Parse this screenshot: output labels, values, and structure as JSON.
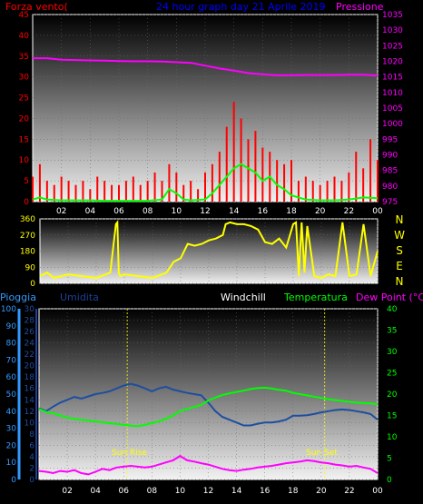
{
  "chart_data": [
    {
      "type": "line",
      "panel": "wind-pressure",
      "title": "24 hour graph day  21 Aprile 2019",
      "left_label": "Forza vento(",
      "right_label": "Pressione",
      "colors": {
        "left": "#ff0000",
        "right": "#ff00ff",
        "title": "#0000ff",
        "gust": "#ff0000",
        "avg": "#00ff00",
        "pressure": "#ff00ff"
      },
      "y_left_range": [
        0,
        45
      ],
      "y_left_ticks": [
        "0",
        "5",
        "10",
        "15",
        "20",
        "25",
        "30",
        "35",
        "40",
        "45"
      ],
      "y_right_range": [
        975,
        1035
      ],
      "y_right_ticks": [
        "975",
        "980",
        "985",
        "990",
        "995",
        "1000",
        "1005",
        "1010",
        "1015",
        "1020",
        "1025",
        "1030",
        "1035"
      ],
      "x_ticks": [
        "02",
        "04",
        "06",
        "08",
        "10",
        "12",
        "14",
        "16",
        "18",
        "20",
        "22",
        "00"
      ],
      "series": [
        {
          "key": "pressure",
          "values_x": [
            0,
            1,
            2,
            3,
            4,
            5,
            6,
            7,
            8,
            9,
            10,
            11,
            12,
            13,
            14,
            15,
            16,
            17,
            18,
            19,
            20,
            21,
            22,
            23,
            24
          ],
          "values": [
            1021,
            1021,
            1020.5,
            1020.4,
            1020.3,
            1020.2,
            1020.1,
            1020,
            1020,
            1019.9,
            1019.7,
            1019.5,
            1018.6,
            1017.7,
            1017,
            1016.2,
            1015.8,
            1015.5,
            1015.5,
            1015.6,
            1015.6,
            1015.6,
            1015.7,
            1015.7,
            1015.4
          ]
        },
        {
          "key": "wind-avg",
          "values_x": [
            0,
            0.5,
            1,
            2,
            3,
            4,
            5,
            6,
            7,
            8,
            9,
            9.5,
            10,
            10.5,
            11,
            12,
            12.5,
            13,
            13.5,
            14,
            14.5,
            15,
            15.5,
            16,
            16.5,
            17,
            17.5,
            18,
            19,
            20,
            21,
            22,
            23,
            24
          ],
          "values": [
            0.5,
            1,
            0.5,
            0.3,
            0.3,
            0.3,
            0.2,
            0.2,
            0.2,
            0.2,
            0.5,
            3,
            2,
            0.5,
            0.3,
            0.5,
            2,
            4,
            6,
            8,
            9,
            8,
            7,
            5,
            6,
            4,
            3,
            1.5,
            0.5,
            0.3,
            0.3,
            0.5,
            1,
            0.8
          ]
        },
        {
          "key": "wind-gust",
          "values_x": [
            0,
            0.5,
            1,
            1.5,
            2,
            2.5,
            3,
            3.5,
            4,
            4.5,
            5,
            5.5,
            6,
            6.5,
            7,
            7.5,
            8,
            8.5,
            9,
            9.5,
            10,
            10.5,
            11,
            11.5,
            12,
            12.5,
            13,
            13.5,
            14,
            14.5,
            15,
            15.5,
            16,
            16.5,
            17,
            17.5,
            18,
            18.5,
            19,
            19.5,
            20,
            20.5,
            21,
            21.5,
            22,
            22.5,
            23,
            23.5,
            24
          ],
          "values": [
            6,
            9,
            5,
            4,
            6,
            5,
            4,
            5,
            3,
            6,
            5,
            4,
            4,
            5,
            6,
            4,
            5,
            7,
            5,
            9,
            7,
            4,
            5,
            3,
            7,
            9,
            12,
            18,
            24,
            20,
            15,
            17,
            13,
            12,
            10,
            9,
            10,
            5,
            6,
            5,
            4,
            5,
            6,
            5,
            7,
            12,
            8,
            15,
            10
          ]
        }
      ]
    },
    {
      "type": "line",
      "panel": "wind-direction",
      "y_range": [
        0,
        360
      ],
      "y_ticks": [
        "0",
        "90",
        "180",
        "270",
        "360"
      ],
      "direction_letters": [
        "N",
        "W",
        "S",
        "E",
        "N"
      ],
      "colors": {
        "line": "#ffff00",
        "ticks": "#ffff00",
        "letters": "#ffff00"
      },
      "series": [
        {
          "key": "wind-dir",
          "values_x": [
            0,
            0.5,
            1,
            2,
            3,
            4,
            5,
            5.4,
            5.5,
            5.6,
            5.7,
            6,
            7,
            8,
            9,
            9.5,
            10,
            10.5,
            11,
            11.5,
            12,
            12.5,
            13,
            13.2,
            13.5,
            14,
            14.5,
            15,
            15.5,
            16,
            16.5,
            17,
            17.5,
            18,
            18.2,
            18.4,
            18.6,
            18.8,
            19,
            19.5,
            20,
            20.5,
            21,
            21.5,
            22,
            22.5,
            23,
            23.5,
            24
          ],
          "values": [
            40,
            60,
            30,
            50,
            40,
            30,
            60,
            330,
            340,
            60,
            40,
            50,
            40,
            30,
            60,
            120,
            140,
            220,
            210,
            220,
            240,
            250,
            270,
            330,
            340,
            330,
            330,
            320,
            300,
            230,
            220,
            250,
            200,
            330,
            340,
            40,
            340,
            60,
            320,
            40,
            30,
            50,
            40,
            340,
            40,
            50,
            330,
            40,
            180
          ]
        }
      ]
    },
    {
      "type": "line",
      "panel": "humidity-temperature",
      "labels": {
        "pioggia": "Pioggia",
        "umidita": "Umidita",
        "windchill": "Windchill",
        "temperatura": "Temperatura",
        "dewpoint": "Dew Point (°C)",
        "sunrise": "Sun Rise",
        "sunset": "Sun Set"
      },
      "colors": {
        "pioggia": "#3399ff",
        "umidita": "#1e3f99",
        "windchill": "#ffffff",
        "temperatura": "#00ff00",
        "dewpoint": "#ff00ff",
        "sun": "#ffff00",
        "humidity": "#1e4ea0",
        "temperature": "#00ff00",
        "dew": "#ff00ff"
      },
      "y_rain_range": [
        0,
        100
      ],
      "y_rain_ticks": [
        "0",
        "10",
        "20",
        "30",
        "40",
        "50",
        "60",
        "70",
        "80",
        "90",
        "100"
      ],
      "y_hum_range": [
        0,
        30
      ],
      "y_hum_ticks": [
        "0",
        "2",
        "4",
        "6",
        "8",
        "10",
        "12",
        "14",
        "16",
        "18",
        "20",
        "22",
        "24",
        "26",
        "28",
        "30"
      ],
      "y_temp_range": [
        0,
        40
      ],
      "y_temp_ticks": [
        "0",
        "5",
        "10",
        "15",
        "20",
        "25",
        "30",
        "35",
        "40"
      ],
      "x_ticks": [
        "02",
        "04",
        "06",
        "08",
        "10",
        "12",
        "14",
        "16",
        "18",
        "20",
        "22",
        "00"
      ],
      "sunrise_hour": 6.25,
      "sunset_hour": 20.25,
      "series": [
        {
          "key": "humidity",
          "values_x": [
            0,
            0.5,
            1,
            1.5,
            2,
            2.5,
            3,
            3.5,
            4,
            4.5,
            5,
            5.5,
            6,
            6.5,
            7,
            7.5,
            8,
            8.5,
            9,
            9.5,
            10,
            10.5,
            11,
            11.5,
            12,
            12.5,
            13,
            13.5,
            14,
            14.5,
            15,
            15.5,
            16,
            16.5,
            17,
            17.5,
            18,
            18.5,
            19,
            19.5,
            20,
            20.5,
            21,
            21.5,
            22,
            22.5,
            23,
            23.5,
            24
          ],
          "values": [
            12.5,
            12,
            12.8,
            13.5,
            14,
            14.5,
            14.2,
            14.6,
            15,
            15.2,
            15.5,
            16,
            16.5,
            16.8,
            16.5,
            16,
            15.5,
            16,
            16.3,
            15.8,
            15.5,
            15.2,
            15,
            14.8,
            13.5,
            12,
            11,
            10.5,
            10,
            9.5,
            9.5,
            9.8,
            10,
            10,
            10.2,
            10.5,
            11.2,
            11.2,
            11.3,
            11.5,
            11.8,
            12,
            12.2,
            12.3,
            12.2,
            12,
            11.8,
            11.5,
            10.5
          ]
        },
        {
          "key": "temperature",
          "values_x": [
            0,
            0.5,
            1,
            1.5,
            2,
            2.5,
            3,
            3.5,
            4,
            4.5,
            5,
            5.5,
            6,
            6.5,
            7,
            7.5,
            8,
            8.5,
            9,
            9.5,
            10,
            10.5,
            11,
            11.5,
            12,
            12.5,
            13,
            13.5,
            14,
            14.5,
            15,
            15.5,
            16,
            16.5,
            17,
            17.5,
            18,
            18.5,
            19,
            19.5,
            20,
            20.5,
            21,
            21.5,
            22,
            22.5,
            23,
            23.5,
            24
          ],
          "values": [
            16.5,
            15.8,
            15.5,
            15,
            14.5,
            14.2,
            14,
            13.8,
            13.6,
            13.4,
            13.2,
            13,
            12.8,
            12.6,
            12.5,
            12.8,
            13.2,
            13.6,
            14.2,
            15,
            16,
            16.5,
            17,
            17.5,
            18.5,
            19.2,
            19.8,
            20.2,
            20.5,
            20.8,
            21.2,
            21.4,
            21.5,
            21.3,
            21,
            20.8,
            20.3,
            20,
            19.7,
            19.4,
            19.1,
            18.8,
            18.6,
            18.4,
            18.2,
            18,
            17.9,
            17.8,
            17.6
          ]
        },
        {
          "key": "dewpoint",
          "values_x": [
            0,
            0.5,
            1,
            1.5,
            2,
            2.5,
            3,
            3.5,
            4,
            4.5,
            5,
            5.5,
            6,
            6.5,
            7,
            7.5,
            8,
            8.5,
            9,
            9.5,
            10,
            10.5,
            11,
            11.5,
            12,
            12.5,
            13,
            13.5,
            14,
            14.5,
            15,
            15.5,
            16,
            16.5,
            17,
            17.5,
            18,
            18.5,
            19,
            19.5,
            20,
            20.5,
            21,
            21.5,
            22,
            22.5,
            23,
            23.5,
            24
          ],
          "values": [
            2,
            1.8,
            1.5,
            2,
            1.8,
            2.2,
            1.5,
            1.2,
            1.8,
            2.5,
            2.2,
            2.8,
            3,
            3.2,
            3,
            2.8,
            3,
            3.5,
            4,
            4.5,
            5.5,
            4.5,
            4.2,
            3.8,
            3.5,
            3,
            2.5,
            2.2,
            2,
            2.3,
            2.5,
            2.8,
            3,
            3.2,
            3.5,
            3.8,
            4,
            4.2,
            4.5,
            4.3,
            4,
            3.8,
            3.5,
            3.3,
            3,
            3.2,
            2.8,
            2.5,
            1.5
          ]
        }
      ]
    }
  ]
}
